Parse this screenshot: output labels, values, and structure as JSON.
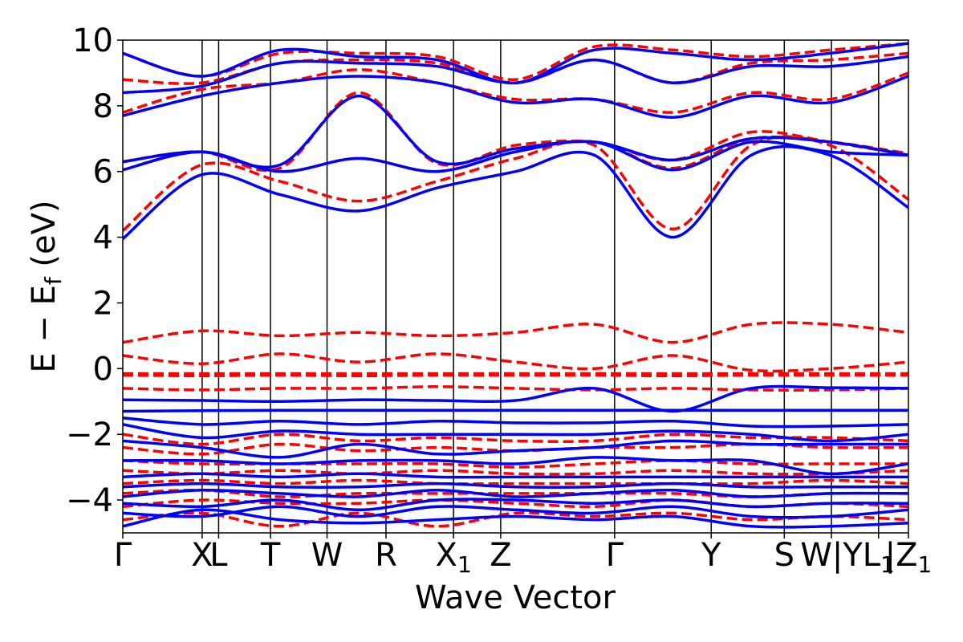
{
  "chart_data": {
    "type": "line",
    "title": "",
    "xlabel": "Wave Vector",
    "ylabel": "E − E_f (eV)",
    "ylabel_main": "E  −  E",
    "ylabel_sub": "f",
    "ylabel_unit": " (eV)",
    "ylim": [
      -5,
      10
    ],
    "yticks": [
      -4,
      -2,
      0,
      2,
      4,
      6,
      8,
      10
    ],
    "ytick_labels": [
      "−4",
      "−2",
      "0",
      "2",
      "4",
      "6",
      "8",
      "10"
    ],
    "grid": false,
    "legend": "none",
    "colors": {
      "series_a": "#0000ff",
      "series_b": "#ff0000",
      "kpath_lines": "#000000"
    },
    "kpath": [
      {
        "pos": 0.0,
        "main": "Γ",
        "sub": ""
      },
      {
        "pos": 0.101,
        "main": "X",
        "sub": ""
      },
      {
        "pos": 0.122,
        "main": "L",
        "sub": ""
      },
      {
        "pos": 0.188,
        "main": "T",
        "sub": ""
      },
      {
        "pos": 0.26,
        "main": "W",
        "sub": ""
      },
      {
        "pos": 0.335,
        "main": "R",
        "sub": ""
      },
      {
        "pos": 0.421,
        "main": "X",
        "sub": "1"
      },
      {
        "pos": 0.481,
        "main": "Z",
        "sub": ""
      },
      {
        "pos": 0.626,
        "main": "Γ",
        "sub": ""
      },
      {
        "pos": 0.749,
        "main": "Y",
        "sub": ""
      },
      {
        "pos": 0.842,
        "main": "S",
        "sub": ""
      },
      {
        "pos": 0.902,
        "main": "W|Y",
        "sub": ""
      },
      {
        "pos": 0.962,
        "main": "L",
        "sub": "1"
      },
      {
        "pos": 1.0,
        "main": "|Z",
        "sub": "1"
      }
    ],
    "series": [
      {
        "style": "solid",
        "bands": [
          {
            "e": [
              3.95,
              5.9,
              5.3,
              4.8,
              5.5,
              6.0,
              6.5,
              4.0,
              6.5,
              6.5,
              4.9
            ]
          },
          {
            "e": [
              6.05,
              6.6,
              6.0,
              6.4,
              6.0,
              6.6,
              6.9,
              6.05,
              6.9,
              6.6,
              6.5
            ]
          },
          {
            "e": [
              6.3,
              6.6,
              6.2,
              8.3,
              6.3,
              6.7,
              6.9,
              6.35,
              7.0,
              6.9,
              6.5
            ]
          },
          {
            "e": [
              7.7,
              8.3,
              8.7,
              8.9,
              8.7,
              8.1,
              8.2,
              7.65,
              8.3,
              8.1,
              8.9
            ]
          },
          {
            "e": [
              8.4,
              8.6,
              9.3,
              9.3,
              9.2,
              8.7,
              9.4,
              8.7,
              9.2,
              9.2,
              9.5
            ]
          },
          {
            "e": [
              9.6,
              8.9,
              9.7,
              9.5,
              9.4,
              8.7,
              9.7,
              9.6,
              9.4,
              9.6,
              9.9
            ]
          },
          {
            "e": [
              -0.95,
              -0.97,
              -1.0,
              -0.95,
              -0.97,
              -0.97,
              -0.6,
              -1.3,
              -0.6,
              -0.58,
              -0.6
            ]
          },
          {
            "e": [
              -1.3,
              -1.28,
              -1.27,
              -1.27,
              -1.27,
              -1.27,
              -1.27,
              -1.27,
              -1.27,
              -1.27,
              -1.27
            ]
          },
          {
            "e": [
              -1.5,
              -1.7,
              -1.6,
              -1.7,
              -1.6,
              -1.65,
              -1.65,
              -1.6,
              -1.75,
              -1.75,
              -1.7
            ]
          },
          {
            "e": [
              -1.7,
              -2.1,
              -1.9,
              -2.0,
              -2.0,
              -2.0,
              -2.0,
              -1.9,
              -2.0,
              -2.2,
              -2.0
            ]
          },
          {
            "e": [
              -2.2,
              -2.4,
              -2.7,
              -2.3,
              -2.6,
              -2.5,
              -2.4,
              -2.2,
              -2.3,
              -2.3,
              -2.3
            ]
          },
          {
            "e": [
              -2.8,
              -2.8,
              -2.9,
              -2.8,
              -2.8,
              -2.9,
              -2.7,
              -2.8,
              -2.8,
              -3.2,
              -2.9
            ]
          },
          {
            "e": [
              -3.3,
              -3.2,
              -3.3,
              -3.2,
              -3.3,
              -3.3,
              -3.3,
              -3.3,
              -3.3,
              -3.3,
              -3.3
            ]
          },
          {
            "e": [
              -3.6,
              -3.5,
              -3.6,
              -3.6,
              -3.5,
              -3.6,
              -3.6,
              -3.5,
              -3.6,
              -3.6,
              -3.6
            ]
          },
          {
            "e": [
              -3.9,
              -3.7,
              -3.8,
              -3.9,
              -3.7,
              -3.9,
              -3.8,
              -3.7,
              -3.9,
              -3.8,
              -3.8
            ]
          },
          {
            "e": [
              -4.1,
              -4.2,
              -4.0,
              -4.3,
              -4.0,
              -4.0,
              -4.1,
              -4.0,
              -4.2,
              -4.1,
              -4.1
            ]
          },
          {
            "e": [
              -4.4,
              -4.5,
              -4.2,
              -4.5,
              -4.2,
              -4.3,
              -4.4,
              -4.2,
              -4.5,
              -4.5,
              -4.3
            ]
          },
          {
            "e": [
              -4.8,
              -4.3,
              -4.6,
              -4.7,
              -4.6,
              -4.5,
              -4.6,
              -4.5,
              -4.8,
              -4.8,
              -4.7
            ]
          }
        ]
      },
      {
        "style": "dashed",
        "bands": [
          {
            "e": [
              4.2,
              6.2,
              5.7,
              5.1,
              5.7,
              6.4,
              6.8,
              4.25,
              6.8,
              6.8,
              5.15
            ]
          },
          {
            "e": [
              6.05,
              6.6,
              6.0,
              6.4,
              6.0,
              6.6,
              6.9,
              6.1,
              7.0,
              6.9,
              6.55
            ]
          },
          {
            "e": [
              6.3,
              6.6,
              6.1,
              8.4,
              6.25,
              6.8,
              6.9,
              6.35,
              7.2,
              6.9,
              6.5
            ]
          },
          {
            "e": [
              7.8,
              8.5,
              8.7,
              9.1,
              8.7,
              8.2,
              8.2,
              7.8,
              8.4,
              8.2,
              9.0
            ]
          },
          {
            "e": [
              8.8,
              8.7,
              9.3,
              9.4,
              9.3,
              8.7,
              9.4,
              8.7,
              9.3,
              9.4,
              9.6
            ]
          },
          {
            "e": [
              9.6,
              8.9,
              9.6,
              9.6,
              9.5,
              8.8,
              9.8,
              9.7,
              9.5,
              9.7,
              9.9
            ]
          },
          {
            "e": [
              0.8,
              1.15,
              1.0,
              1.1,
              1.0,
              1.1,
              1.35,
              0.8,
              1.35,
              1.35,
              1.1
            ]
          },
          {
            "e": [
              0.4,
              0.15,
              0.45,
              0.2,
              0.45,
              0.2,
              0.0,
              0.4,
              -0.05,
              0.0,
              0.2
            ]
          },
          {
            "e": [
              -0.15,
              -0.15,
              -0.15,
              -0.15,
              -0.15,
              -0.15,
              -0.15,
              -0.15,
              -0.15,
              -0.15,
              -0.15
            ]
          },
          {
            "e": [
              -0.2,
              -0.22,
              -0.2,
              -0.22,
              -0.2,
              -0.2,
              -0.2,
              -0.22,
              -0.2,
              -0.2,
              -0.2
            ]
          },
          {
            "e": [
              -0.6,
              -0.65,
              -0.6,
              -0.6,
              -0.55,
              -0.6,
              -0.65,
              -0.6,
              -0.65,
              -0.65,
              -0.6
            ]
          },
          {
            "e": [
              -2.0,
              -2.3,
              -2.0,
              -2.2,
              -2.1,
              -2.2,
              -2.2,
              -2.0,
              -2.1,
              -2.1,
              -2.2
            ]
          },
          {
            "e": [
              -2.4,
              -2.6,
              -2.3,
              -2.5,
              -2.4,
              -2.5,
              -2.4,
              -2.4,
              -2.3,
              -2.4,
              -2.4
            ]
          },
          {
            "e": [
              -2.8,
              -2.9,
              -2.9,
              -2.9,
              -2.9,
              -3.0,
              -2.9,
              -2.8,
              -2.9,
              -2.9,
              -2.9
            ]
          },
          {
            "e": [
              -3.1,
              -3.2,
              -3.1,
              -3.2,
              -3.1,
              -3.2,
              -3.2,
              -3.1,
              -3.2,
              -3.2,
              -3.1
            ]
          },
          {
            "e": [
              -3.5,
              -3.4,
              -3.5,
              -3.4,
              -3.5,
              -3.5,
              -3.5,
              -3.5,
              -3.5,
              -3.4,
              -3.5
            ]
          },
          {
            "e": [
              -3.8,
              -3.7,
              -3.9,
              -3.8,
              -3.8,
              -3.8,
              -3.8,
              -3.8,
              -3.9,
              -3.8,
              -3.8
            ]
          },
          {
            "e": [
              -4.2,
              -4.0,
              -4.1,
              -4.1,
              -4.0,
              -4.1,
              -4.2,
              -4.0,
              -4.2,
              -4.1,
              -4.2
            ]
          },
          {
            "e": [
              -4.6,
              -4.4,
              -4.8,
              -4.4,
              -4.8,
              -4.4,
              -4.5,
              -4.4,
              -4.6,
              -4.5,
              -4.6
            ]
          }
        ]
      }
    ]
  }
}
